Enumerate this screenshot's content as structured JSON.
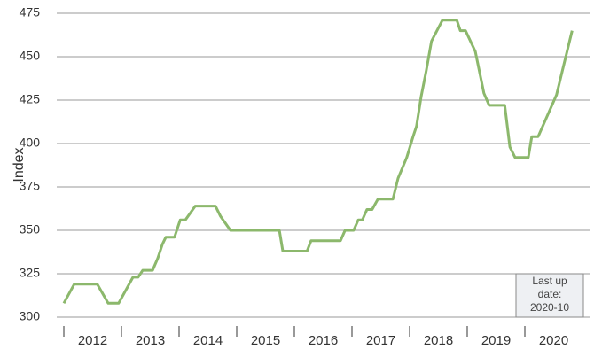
{
  "chart_data": {
    "type": "line",
    "y_label": "Index",
    "color": "#8cb86c",
    "x": [
      2012.0,
      2012.18,
      2012.58,
      2012.77,
      2012.95,
      2013.2,
      2013.29,
      2013.37,
      2013.54,
      2013.63,
      2013.71,
      2013.77,
      2013.92,
      2014.02,
      2014.11,
      2014.28,
      2014.63,
      2014.72,
      2014.89,
      2015.74,
      2015.8,
      2016.22,
      2016.29,
      2016.8,
      2016.88,
      2017.03,
      2017.11,
      2017.18,
      2017.26,
      2017.35,
      2017.45,
      2017.71,
      2017.8,
      2017.95,
      2018.06,
      2018.12,
      2018.2,
      2018.29,
      2018.38,
      2018.57,
      2018.82,
      2018.88,
      2018.97,
      2019.14,
      2019.29,
      2019.38,
      2019.65,
      2019.74,
      2019.83,
      2020.06,
      2020.12,
      2020.23,
      2020.55,
      2020.82
    ],
    "values": [
      308,
      319,
      319,
      308,
      308,
      323,
      323,
      327,
      327,
      334,
      342,
      346,
      346,
      356,
      356,
      364,
      364,
      358,
      350,
      350,
      338,
      338,
      344,
      344,
      350,
      350,
      356,
      356,
      362,
      362,
      368,
      368,
      380,
      392,
      404,
      410,
      427,
      442,
      459,
      471,
      471,
      465,
      465,
      453,
      429,
      422,
      422,
      398,
      392,
      392,
      404,
      404,
      428,
      465
    ],
    "xlim": [
      2012,
      2021
    ],
    "xticks": [
      {
        "value": 2012,
        "label": "2012"
      },
      {
        "value": 2013,
        "label": "2013"
      },
      {
        "value": 2014,
        "label": "2014"
      },
      {
        "value": 2015,
        "label": "2015"
      },
      {
        "value": 2016,
        "label": "2016"
      },
      {
        "value": 2017,
        "label": "2017"
      },
      {
        "value": 2018,
        "label": "2018"
      },
      {
        "value": 2019,
        "label": "2019"
      },
      {
        "value": 2020,
        "label": "2020"
      }
    ],
    "ylim": [
      300,
      475
    ],
    "yticks": [
      300,
      325,
      350,
      375,
      400,
      425,
      450,
      475
    ],
    "grid": true,
    "annotation": [
      "Last up",
      "date:",
      "2020-10"
    ]
  }
}
